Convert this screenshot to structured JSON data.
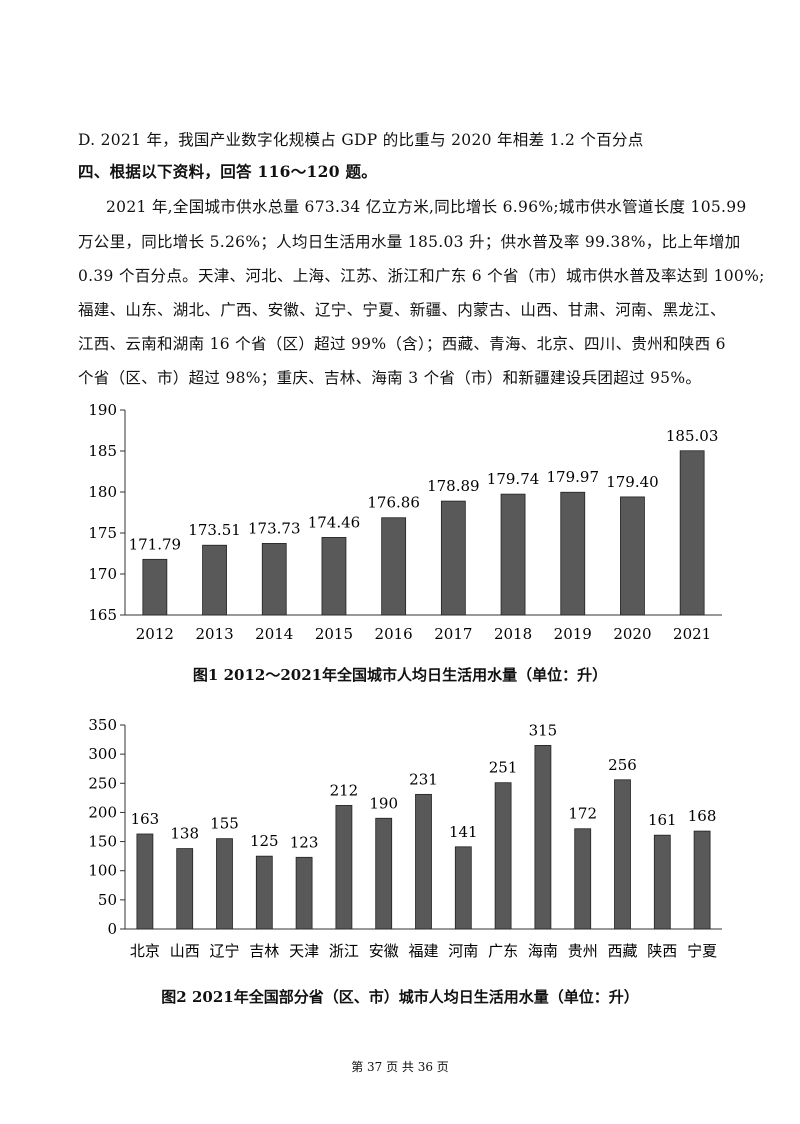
{
  "document": {
    "option_d": "D. 2021 年，我国产业数字化规模占 GDP 的比重与 2020 年相差 1.2 个百分点",
    "section_heading": "四、根据以下资料，回答 116～120 题。",
    "paragraph_lines": [
      "2021 年,全国城市供水总量 673.34 亿立方米,同比增长 6.96%;城市供水管道长度 105.99",
      "万公里，同比增长 5.26%；人均日生活用水量 185.03 升；供水普及率 99.38%，比上年增加",
      "0.39 个百分点。天津、河北、上海、江苏、浙江和广东 6 个省（市）城市供水普及率达到 100%;",
      "福建、山东、湖北、广西、安徽、辽宁、宁夏、新疆、内蒙古、山西、甘肃、河南、黑龙江、",
      "江西、云南和湖南 16 个省（区）超过 99%（含）；西藏、青海、北京、四川、贵州和陕西 6",
      "个省（区、市）超过 98%；重庆、吉林、海南 3 个省（市）和新疆建设兵团超过 95%。"
    ],
    "footer": "第 37 页    共 36 页"
  },
  "chart_data": [
    {
      "type": "bar",
      "title": "图1    2012～2021年全国城市人均日生活用水量（单位：升）",
      "categories": [
        "2012",
        "2013",
        "2014",
        "2015",
        "2016",
        "2017",
        "2018",
        "2019",
        "2020",
        "2021"
      ],
      "values": [
        171.79,
        173.51,
        173.73,
        174.46,
        176.86,
        178.89,
        179.74,
        179.97,
        179.4,
        185.03
      ],
      "value_labels": [
        "171.79",
        "173.51",
        "173.73",
        "174.46",
        "176.86",
        "178.89",
        "179.74",
        "179.97",
        "179.40",
        "185.03"
      ],
      "ylim": [
        165,
        190
      ],
      "yticks": [
        "165",
        "170",
        "175",
        "180",
        "185",
        "190"
      ],
      "bar_color": "#595959"
    },
    {
      "type": "bar",
      "title": "图2    2021年全国部分省（区、市）城市人均日生活用水量（单位：升）",
      "categories": [
        "北京",
        "山西",
        "辽宁",
        "吉林",
        "天津",
        "浙江",
        "安徽",
        "福建",
        "河南",
        "广东",
        "海南",
        "贵州",
        "西藏",
        "陕西",
        "宁夏"
      ],
      "values": [
        163,
        138,
        155,
        125,
        123,
        212,
        190,
        231,
        141,
        251,
        315,
        172,
        256,
        161,
        168
      ],
      "value_labels": [
        "163",
        "138",
        "155",
        "125",
        "123",
        "212",
        "190",
        "231",
        "141",
        "251",
        "315",
        "172",
        "256",
        "161",
        "168"
      ],
      "ylim": [
        0,
        350
      ],
      "yticks": [
        "0",
        "50",
        "100",
        "150",
        "200",
        "250",
        "300",
        "350"
      ],
      "bar_color": "#595959"
    }
  ]
}
